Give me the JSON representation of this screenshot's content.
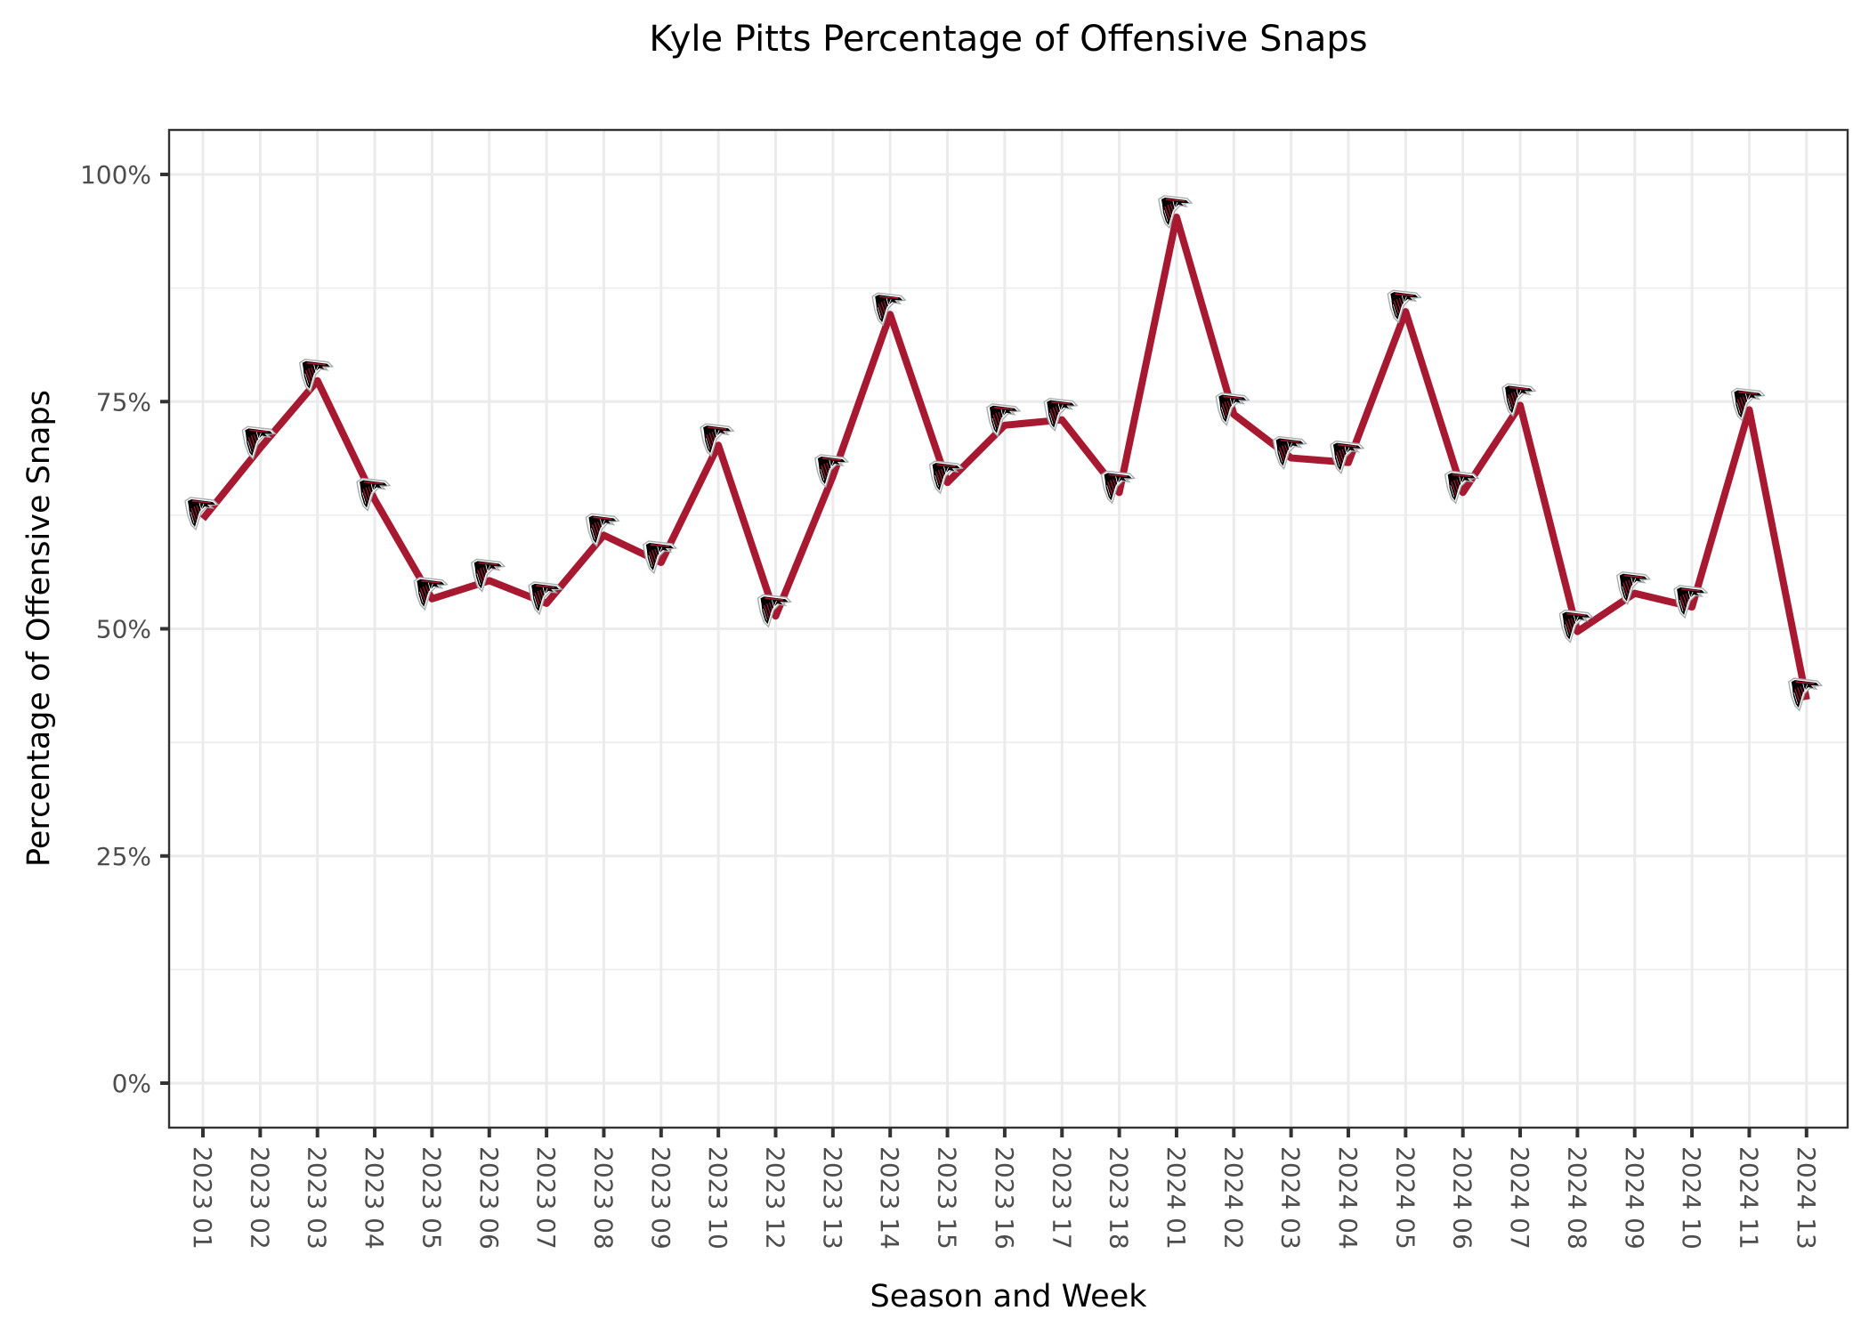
{
  "chart_data": {
    "type": "line",
    "title": "Kyle Pitts Percentage of Offensive Snaps",
    "xlabel": "Season and Week",
    "ylabel": "Percentage of Offensive Snaps",
    "ylim": [
      0,
      100
    ],
    "yticks": [
      0,
      25,
      50,
      75,
      100
    ],
    "ytick_labels": [
      "0%",
      "25%",
      "50%",
      "75%",
      "100%"
    ],
    "grid": true,
    "legend": "none",
    "marker": "atlanta-falcons-logo",
    "line_color": "#a71930",
    "categories": [
      "2023 01",
      "2023 02",
      "2023 03",
      "2023 04",
      "2023 05",
      "2023 06",
      "2023 07",
      "2023 08",
      "2023 09",
      "2023 10",
      "2023 12",
      "2023 13",
      "2023 14",
      "2023 15",
      "2023 16",
      "2023 17",
      "2023 18",
      "2024 01",
      "2024 02",
      "2024 03",
      "2024 04",
      "2024 05",
      "2024 06",
      "2024 07",
      "2024 08",
      "2024 09",
      "2024 10",
      "2024 11",
      "2024 13"
    ],
    "series": [
      {
        "name": "Kyle Pitts",
        "values": [
          62.1,
          69.9,
          77.3,
          64.2,
          53.3,
          55.3,
          52.8,
          60.3,
          57.3,
          70.2,
          51.4,
          66.8,
          84.6,
          66.1,
          72.4,
          73.0,
          65.0,
          95.3,
          73.6,
          68.8,
          68.3,
          84.9,
          65.0,
          74.6,
          49.7,
          53.9,
          52.4,
          74.1,
          42.2
        ]
      }
    ]
  }
}
